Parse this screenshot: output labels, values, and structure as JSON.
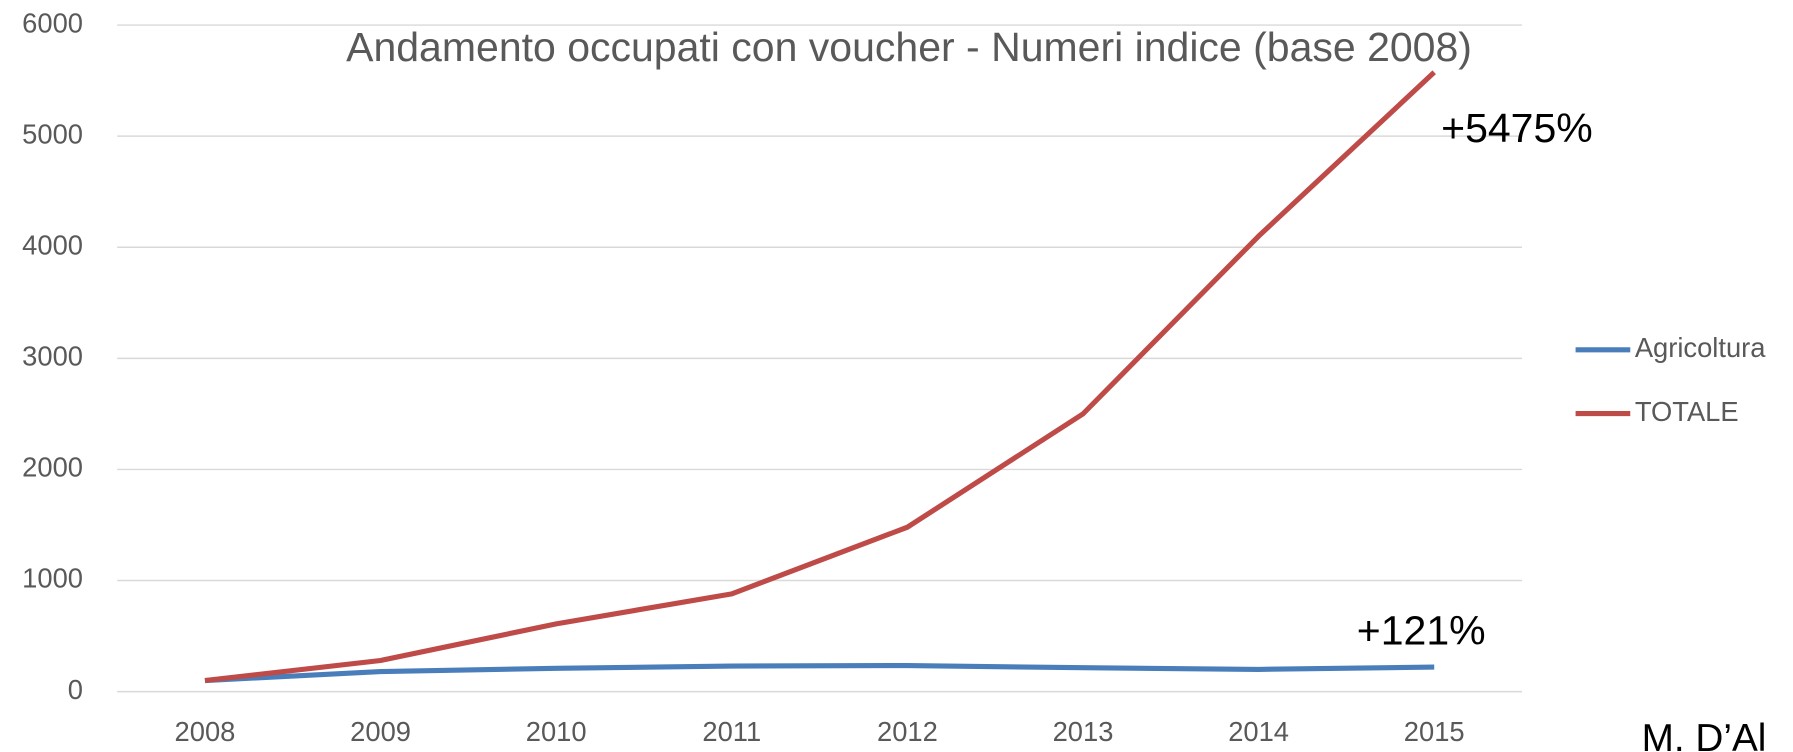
{
  "chart_data": {
    "type": "line",
    "title": "Andamento occupati con voucher - Numeri indice (base 2008)",
    "x": [
      "2008",
      "2009",
      "2010",
      "2011",
      "2012",
      "2013",
      "2014",
      "2015"
    ],
    "series": [
      {
        "name": "Agricoltura",
        "color": "#4a7ebb",
        "values": [
          100,
          180,
          210,
          230,
          235,
          215,
          200,
          221
        ]
      },
      {
        "name": "TOTALE",
        "color": "#be4b48",
        "values": [
          100,
          280,
          610,
          880,
          1480,
          2500,
          4100,
          5575
        ]
      }
    ],
    "ylim": [
      0,
      6000
    ],
    "yticks": [
      0,
      1000,
      2000,
      3000,
      4000,
      5000,
      6000
    ],
    "grid": true,
    "legend": "right",
    "annotations": [
      "+5475%",
      "+121%"
    ],
    "footer": "M. D’Al"
  }
}
